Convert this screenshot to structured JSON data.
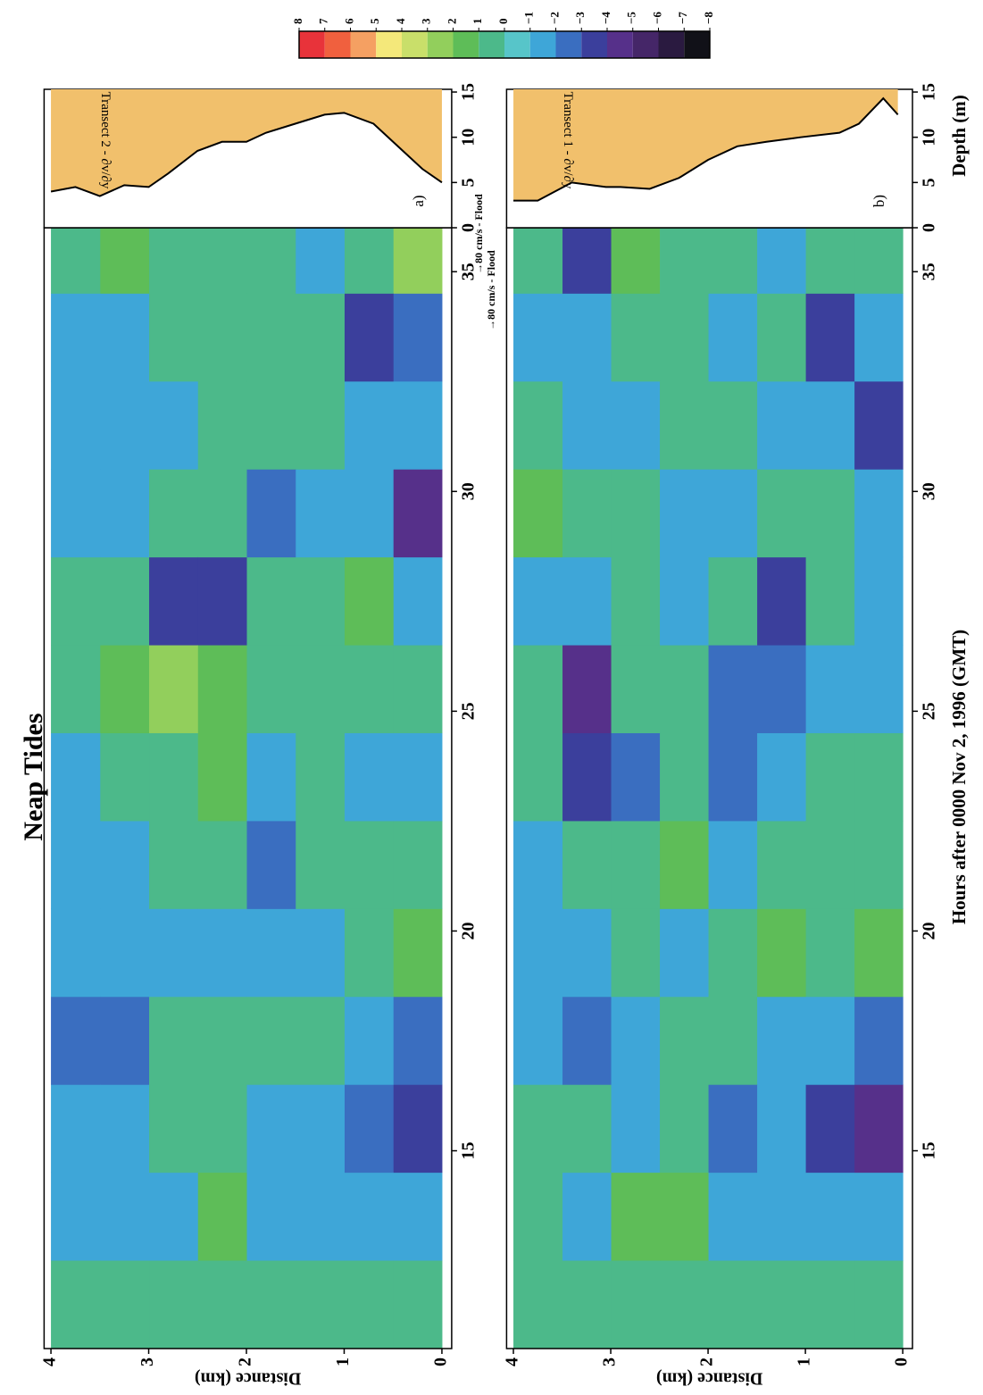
{
  "chart_data": {
    "type": "heatmap",
    "title": "Neap Tides",
    "xlabel": "Hours after 0000 Nov 2, 1996 (GMT)",
    "depth_label": "Depth (m)",
    "xlim": [
      10.5,
      36
    ],
    "xticks": [
      15,
      20,
      25,
      30,
      35
    ],
    "ylim": [
      -0.1,
      4.07
    ],
    "yticks": [
      0,
      1,
      2,
      3,
      4
    ],
    "depth_xlim": [
      0,
      15.3
    ],
    "depth_xticks": [
      0,
      5,
      10,
      15
    ],
    "xbins": [
      10.5,
      12.5,
      14.5,
      16.5,
      18.5,
      20.5,
      22.5,
      24.5,
      26.5,
      28.5,
      30.5,
      32.5,
      34.5,
      36
    ],
    "ybins": [
      0,
      0.5,
      1,
      1.5,
      2,
      2.5,
      3,
      3.5,
      4
    ],
    "colorbar": {
      "levels": [
        8,
        7,
        6,
        5,
        4,
        3,
        2,
        1,
        0,
        {
          "value": -1,
          "label": "−1"
        },
        {
          "value": -2,
          "label": "−2"
        },
        {
          "value": -3,
          "label": "−3"
        },
        {
          "value": -4,
          "label": "−4"
        },
        {
          "value": -5,
          "label": "−5"
        },
        {
          "value": -6,
          "label": "−6"
        },
        {
          "value": -7,
          "label": "−7"
        },
        {
          "value": -8,
          "label": "−8"
        }
      ],
      "colors": [
        "#e8333a",
        "#f0603e",
        "#f5a062",
        "#f4e87a",
        "#c9df6a",
        "#92cf5c",
        "#5ebd58",
        "#4cb98a",
        "#57c5c9",
        "#3ea6d8",
        "#3a6ec0",
        "#3b3f9c",
        "#56308a",
        "#452668",
        "#2a1a40",
        "#111118"
      ]
    },
    "panels": [
      {
        "label": "Transect 2 - ∂v/∂y",
        "tag": "a)",
        "ylabel": "Distance (km)",
        "vector_label": "→80 cm/s - Flood",
        "z": [
          [
            0.5,
            -1,
            -3,
            -2,
            2,
            1,
            -1,
            0.5,
            -1,
            -4,
            -1,
            -2,
            3
          ],
          [
            0.5,
            -1,
            -2,
            -1,
            1,
            1,
            -1,
            1,
            2,
            -1,
            -1,
            -3,
            1
          ],
          [
            0.5,
            -1,
            -1,
            1,
            -1,
            1,
            1,
            1,
            1,
            -1,
            1,
            1,
            -1
          ],
          [
            0.5,
            -1,
            -1,
            1,
            -1,
            -2,
            -1,
            1,
            1,
            -2,
            1,
            1,
            1
          ],
          [
            0.5,
            2,
            1,
            1,
            -1,
            1,
            2,
            2,
            -3,
            1,
            1,
            1,
            1
          ],
          [
            0.5,
            -1,
            1,
            1,
            -1,
            1,
            1,
            3,
            -3,
            1,
            -1,
            1,
            1
          ],
          [
            0.5,
            -1,
            -1,
            -2,
            -1,
            -1,
            1,
            2,
            1,
            -1,
            -1,
            -1,
            2
          ],
          [
            0.5,
            -1,
            -1,
            -2,
            -1,
            -1,
            -1,
            1,
            1,
            -1,
            -1,
            -1,
            1
          ]
        ],
        "profile": {
          "distance": [
            4,
            3.75,
            3.5,
            3.25,
            3,
            2.8,
            2.5,
            2.25,
            2,
            1.8,
            1.5,
            1.2,
            1,
            0.7,
            0.4,
            0.2,
            0
          ],
          "depth": [
            4,
            4.5,
            3.5,
            4.7,
            4.5,
            6,
            8.5,
            9.5,
            9.5,
            10.5,
            11.5,
            12.5,
            12.7,
            11.5,
            8.5,
            6.5,
            5
          ]
        }
      },
      {
        "label": "Transect 1 - ∂v/∂y",
        "tag": "b)",
        "ylabel": "Distance (km)",
        "vector_label": "→80 cm/s - Flood",
        "z": [
          [
            0.5,
            -1,
            -4,
            -2,
            2,
            1,
            1,
            -1,
            -1,
            -1,
            -3,
            -1,
            1
          ],
          [
            0.5,
            -1,
            -3,
            -1,
            1,
            1,
            1,
            -1,
            1,
            1,
            -1,
            -3,
            1
          ],
          [
            0.5,
            -1,
            -1,
            -1,
            2,
            1,
            -1,
            -2,
            -3,
            1,
            -1,
            1,
            -1
          ],
          [
            0.5,
            -1,
            -2,
            1,
            1,
            -1,
            -2,
            -2,
            1,
            -1,
            1,
            -1,
            1
          ],
          [
            0.5,
            2,
            1,
            1,
            -1,
            2,
            1,
            1,
            -1,
            -1,
            1,
            1,
            1
          ],
          [
            0.5,
            2,
            -1,
            -1,
            1,
            1,
            -2,
            1,
            1,
            1,
            -1,
            1,
            2
          ],
          [
            0.5,
            -1,
            1,
            -2,
            -1,
            1,
            -3,
            -4,
            -1,
            1,
            -1,
            -1,
            -3
          ],
          [
            0.5,
            1,
            1,
            -1,
            -1,
            -1,
            1,
            1,
            -1,
            2,
            1,
            -1,
            1
          ]
        ],
        "profile": {
          "distance": [
            4,
            3.75,
            3.4,
            3.05,
            2.9,
            2.6,
            2.3,
            2,
            1.7,
            1.4,
            1.05,
            0.65,
            0.45,
            0.2,
            0.05
          ],
          "depth": [
            3,
            3,
            5,
            4.5,
            4.5,
            4.3,
            5.5,
            7.5,
            9,
            9.5,
            10,
            10.5,
            11.5,
            14.3,
            12.5
          ]
        }
      }
    ]
  }
}
